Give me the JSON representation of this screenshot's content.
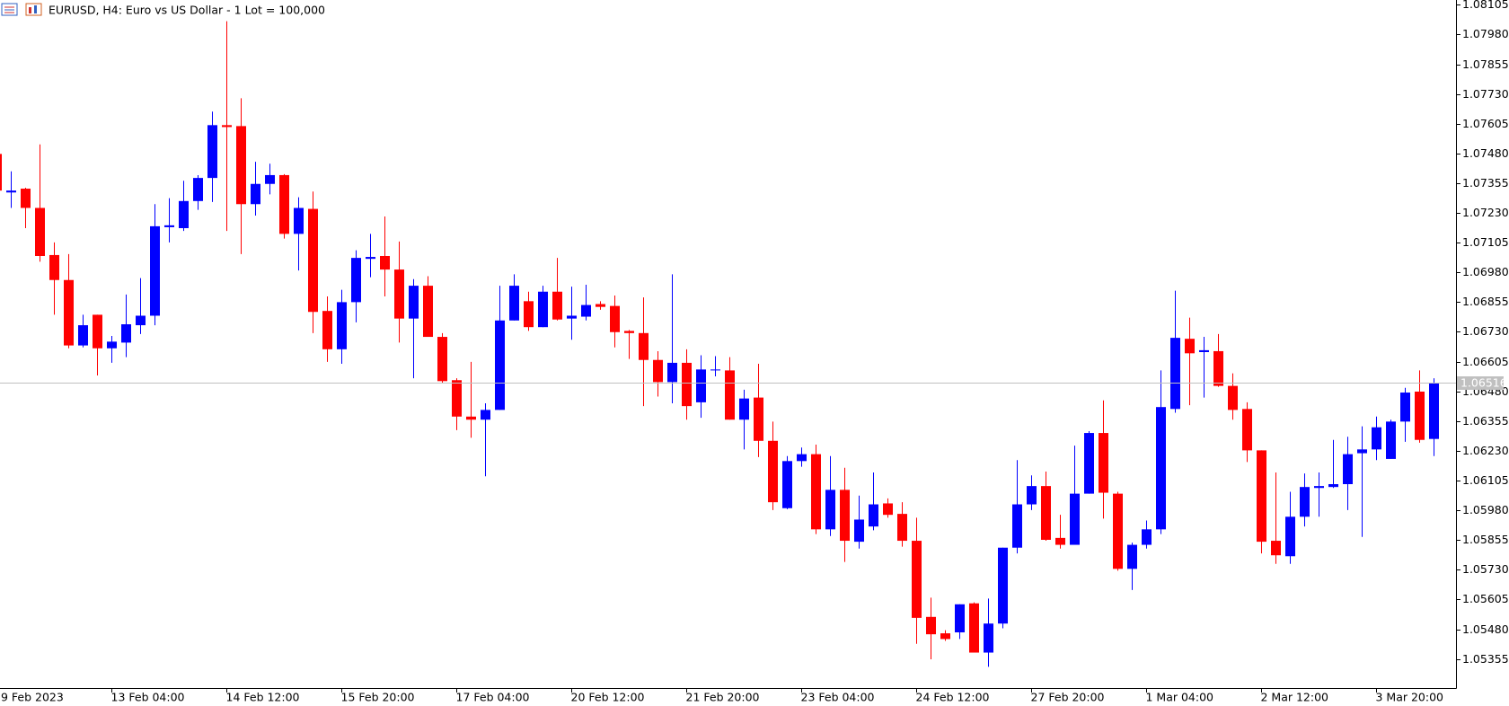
{
  "chart_data": {
    "type": "candlestick",
    "title": "EURUSD, H4:  Euro vs US Dollar - 1 Lot = 100,000",
    "categories": [
      "9 Feb 2023",
      null,
      null,
      null,
      null,
      null,
      null,
      null,
      "13 Feb 04:00",
      null,
      null,
      null,
      null,
      null,
      null,
      null,
      "14 Feb 12:00",
      null,
      null,
      null,
      null,
      null,
      null,
      null,
      "15 Feb 20:00",
      null,
      null,
      null,
      null,
      null,
      null,
      null,
      "17 Feb 04:00",
      null,
      null,
      null,
      null,
      null,
      null,
      null,
      "20 Feb 12:00",
      null,
      null,
      null,
      null,
      null,
      null,
      null,
      "21 Feb 20:00",
      null,
      null,
      null,
      null,
      null,
      null,
      null,
      "23 Feb 04:00",
      null,
      null,
      null,
      null,
      null,
      null,
      null,
      "24 Feb 12:00",
      null,
      null,
      null,
      null,
      null,
      null,
      null,
      "27 Feb 20:00",
      null,
      null,
      null,
      null,
      null,
      null,
      null,
      "1 Mar 04:00",
      null,
      null,
      null,
      null,
      null,
      null,
      null,
      "2 Mar 12:00",
      null,
      null,
      null,
      null,
      null,
      null,
      null,
      "3 Mar 20:00",
      null,
      null,
      null,
      null
    ],
    "open": [
      1.07478,
      1.07316,
      1.07332,
      1.07251,
      1.07053,
      1.06948,
      1.06673,
      1.06802,
      1.06661,
      1.06685,
      1.06758,
      1.06798,
      1.0717,
      1.07166,
      1.0728,
      1.07377,
      1.07599,
      1.07595,
      1.07267,
      1.07352,
      1.07389,
      1.07142,
      1.07247,
      1.06818,
      1.06657,
      1.06855,
      1.07037,
      1.07049,
      1.06992,
      1.06786,
      1.06924,
      1.06709,
      1.06527,
      1.06374,
      1.06361,
      1.06402,
      1.06778,
      1.06859,
      1.0675,
      1.06899,
      1.06786,
      1.06794,
      1.06847,
      1.06839,
      1.06734,
      1.06725,
      1.06612,
      1.06519,
      1.066,
      1.06434,
      1.06568,
      1.06568,
      1.06361,
      1.06454,
      1.06272,
      1.05989,
      1.06187,
      1.06216,
      1.059,
      1.06066,
      1.05848,
      1.05912,
      1.06009,
      1.05965,
      1.05852,
      1.05532,
      1.05463,
      1.05467,
      1.05589,
      1.05382,
      1.05504,
      1.05823,
      1.06005,
      1.06082,
      1.05864,
      1.05835,
      1.0605,
      1.06305,
      1.0605,
      1.05734,
      1.05835,
      1.059,
      1.06406,
      1.06701,
      1.06645,
      1.06649,
      1.06503,
      1.06406,
      1.06232,
      1.05852,
      1.05787,
      1.05953,
      1.06074,
      1.06078,
      1.0609,
      1.0622,
      1.06236,
      1.06196,
      1.06353,
      1.06479,
      1.0628
    ],
    "high": [
      1.07486,
      1.07405,
      1.07336,
      1.07518,
      1.07106,
      1.07057,
      1.06802,
      1.06802,
      1.06713,
      1.06887,
      1.06956,
      1.07267,
      1.07292,
      1.07365,
      1.07389,
      1.07656,
      1.08036,
      1.07712,
      1.07445,
      1.07437,
      1.07393,
      1.07296,
      1.0732,
      1.06879,
      1.06907,
      1.07073,
      1.07142,
      1.07215,
      1.0711,
      1.06952,
      1.06964,
      1.06725,
      1.06535,
      1.06604,
      1.0643,
      1.06924,
      1.06972,
      1.06899,
      1.06924,
      1.07041,
      1.0692,
      1.06928,
      1.06859,
      1.06883,
      1.06738,
      1.06875,
      1.06649,
      1.06972,
      1.06657,
      1.06632,
      1.06628,
      1.06624,
      1.06487,
      1.06596,
      1.06353,
      1.06208,
      1.06244,
      1.06256,
      1.06208,
      1.06159,
      1.06042,
      1.06139,
      1.0603,
      1.06014,
      1.05949,
      1.05613,
      1.05476,
      1.05585,
      1.05593,
      1.05609,
      1.05823,
      1.06191,
      1.06127,
      1.06143,
      1.05961,
      1.06252,
      1.06313,
      1.06442,
      1.06058,
      1.05844,
      1.05937,
      1.06568,
      1.06903,
      1.0679,
      1.06709,
      1.06721,
      1.06556,
      1.06434,
      1.06232,
      1.06139,
      1.06058,
      1.06135,
      1.06139,
      1.06276,
      1.06289,
      1.06333,
      1.06374,
      1.06361,
      1.06495,
      1.06568,
      1.06535
    ],
    "low": [
      1.07296,
      1.07251,
      1.07166,
      1.07025,
      1.06802,
      1.06661,
      1.06665,
      1.06547,
      1.066,
      1.06624,
      1.06721,
      1.06758,
      1.07106,
      1.07154,
      1.07243,
      1.07276,
      1.07154,
      1.07057,
      1.07219,
      1.07308,
      1.07122,
      1.06988,
      1.06725,
      1.06604,
      1.06596,
      1.0677,
      1.0696,
      1.06879,
      1.06685,
      1.06535,
      1.06709,
      1.06515,
      1.06317,
      1.06285,
      1.06123,
      1.06402,
      1.06778,
      1.06734,
      1.0675,
      1.06778,
      1.06697,
      1.06778,
      1.06823,
      1.06665,
      1.06616,
      1.06418,
      1.06458,
      1.0643,
      1.06361,
      1.06369,
      1.06543,
      1.06361,
      1.06236,
      1.06204,
      1.05981,
      1.05985,
      1.06163,
      1.0588,
      1.05872,
      1.05763,
      1.05819,
      1.05896,
      1.05949,
      1.05827,
      1.05419,
      1.05354,
      1.05431,
      1.05439,
      1.05382,
      1.05322,
      1.05484,
      1.05799,
      1.05981,
      1.05852,
      1.05819,
      1.05835,
      1.0605,
      1.05945,
      1.05726,
      1.05645,
      1.05819,
      1.0588,
      1.0639,
      1.06422,
      1.06454,
      1.06499,
      1.06361,
      1.06183,
      1.05799,
      1.05755,
      1.05755,
      1.05912,
      1.05953,
      1.06074,
      1.05981,
      1.05868,
      1.06191,
      1.06196,
      1.06268,
      1.06264,
      1.06208
    ],
    "close": [
      1.07324,
      1.07324,
      1.07251,
      1.07049,
      1.06948,
      1.06673,
      1.06758,
      1.06661,
      1.06689,
      1.06762,
      1.06798,
      1.07174,
      1.07178,
      1.0728,
      1.07377,
      1.07599,
      1.07591,
      1.07267,
      1.07352,
      1.07389,
      1.07142,
      1.07251,
      1.06814,
      1.06657,
      1.06855,
      1.07041,
      1.07045,
      1.06992,
      1.06786,
      1.06924,
      1.06709,
      1.06523,
      1.06374,
      1.06361,
      1.06402,
      1.06778,
      1.06924,
      1.0675,
      1.06899,
      1.06782,
      1.06798,
      1.06843,
      1.06835,
      1.06729,
      1.06725,
      1.06612,
      1.06519,
      1.066,
      1.06418,
      1.06572,
      1.06572,
      1.06361,
      1.0645,
      1.06272,
      1.06014,
      1.06187,
      1.06216,
      1.059,
      1.06066,
      1.05852,
      1.05941,
      1.06005,
      1.05961,
      1.05852,
      1.05528,
      1.05459,
      1.05439,
      1.05585,
      1.05382,
      1.05504,
      1.05823,
      1.06005,
      1.06082,
      1.05856,
      1.05835,
      1.0605,
      1.06305,
      1.06054,
      1.05734,
      1.05835,
      1.059,
      1.06414,
      1.06705,
      1.0664,
      1.06653,
      1.06503,
      1.06402,
      1.06232,
      1.05848,
      1.05791,
      1.05953,
      1.06078,
      1.06082,
      1.0609,
      1.06216,
      1.06236,
      1.06329,
      1.06353,
      1.06475,
      1.06276,
      1.06516
    ],
    "up_color": "#0000ff",
    "down_color": "#ff0000",
    "bid": 1.06516,
    "bid_color": "#c0c0c0",
    "ylim": [
      1.05233,
      1.08125
    ],
    "yticks": [
      1.08105,
      {
        "value": 1.0798,
        "label": "1.07980"
      },
      1.07855,
      {
        "value": 1.0773,
        "label": "1.07730"
      },
      1.07605,
      {
        "value": 1.0748,
        "label": "1.07480"
      },
      1.07355,
      {
        "value": 1.0723,
        "label": "1.07230"
      },
      1.07105,
      {
        "value": 1.0698,
        "label": "1.06980"
      },
      1.06855,
      {
        "value": 1.0673,
        "label": "1.06730"
      },
      1.06605,
      {
        "value": 1.0648,
        "label": "1.06480"
      },
      1.06355,
      {
        "value": 1.0623,
        "label": "1.06230"
      },
      1.06105,
      {
        "value": 1.0598,
        "label": "1.05980"
      },
      1.05855,
      {
        "value": 1.0573,
        "label": "1.05730"
      },
      1.05605,
      {
        "value": 1.0548,
        "label": "1.05480"
      },
      1.05355
    ]
  }
}
